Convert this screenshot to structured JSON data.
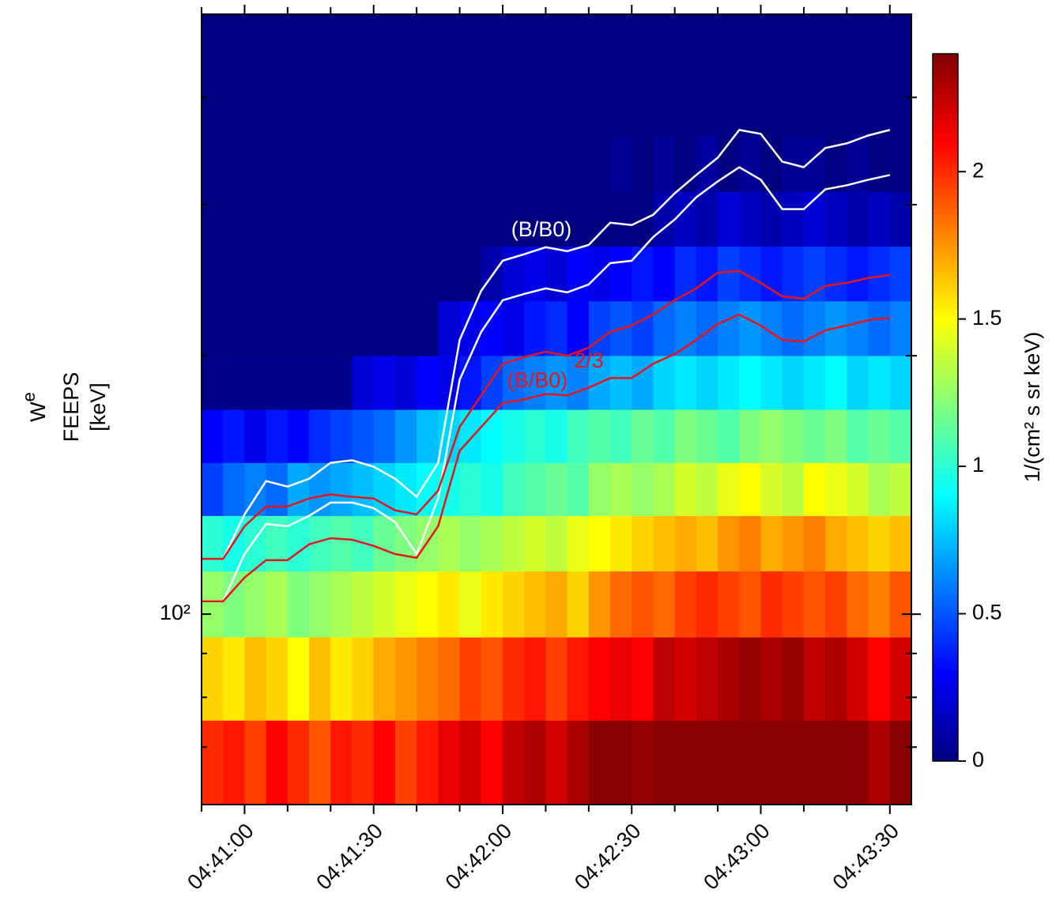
{
  "chart_data": {
    "type": "heatmap",
    "ylabel": {
      "main": "W",
      "sub": "e",
      "line2": "FEEPS",
      "line3": "[keV]"
    },
    "colorbar_label": "1/(cm² s sr keV)",
    "ylog": true,
    "ylim": [
      60,
      500
    ],
    "yticks": [
      {
        "value": 100,
        "label": "10²"
      }
    ],
    "yminorticks": [
      70,
      80,
      90,
      200,
      300,
      400
    ],
    "xlim": [
      "04:40:50",
      "04:43:35"
    ],
    "xticks": [
      "04:41:00",
      "04:41:30",
      "04:42:00",
      "04:42:30",
      "04:43:00",
      "04:43:30"
    ],
    "xminorticks": [
      "04:40:50",
      "04:41:10",
      "04:41:20",
      "04:41:40",
      "04:41:50",
      "04:42:10",
      "04:42:20",
      "04:42:40",
      "04:42:50",
      "04:43:10",
      "04:43:20"
    ],
    "clim": [
      0,
      2.4
    ],
    "cticks": [
      0,
      0.5,
      1,
      1.5,
      2
    ],
    "colormap": "jet",
    "time_bins": [
      "04:40:50",
      "04:40:55",
      "04:41:00",
      "04:41:05",
      "04:41:10",
      "04:41:15",
      "04:41:20",
      "04:41:25",
      "04:41:30",
      "04:41:35",
      "04:41:40",
      "04:41:45",
      "04:41:50",
      "04:41:55",
      "04:42:00",
      "04:42:05",
      "04:42:10",
      "04:42:15",
      "04:42:20",
      "04:42:25",
      "04:42:30",
      "04:42:35",
      "04:42:40",
      "04:42:45",
      "04:42:50",
      "04:42:55",
      "04:43:00",
      "04:43:05",
      "04:43:10",
      "04:43:15",
      "04:43:20",
      "04:43:25",
      "04:43:30",
      "04:43:35"
    ],
    "ybins": [
      60,
      75.2,
      94,
      112.2,
      130.2,
      150.1,
      173.1,
      200,
      231.6,
      268.2,
      310.5,
      361.3,
      500
    ],
    "z": [
      [
        2.0,
        2.05,
        1.95,
        2.1,
        2.0,
        1.9,
        2.05,
        2.0,
        2.1,
        1.95,
        2.05,
        2.15,
        2.2,
        2.1,
        2.25,
        2.3,
        2.2,
        2.3,
        2.38,
        2.38,
        2.35,
        2.38,
        2.38,
        2.38,
        2.38,
        2.38,
        2.38,
        2.38,
        2.38,
        2.38,
        2.38,
        2.3,
        2.38
      ],
      [
        1.6,
        1.55,
        1.65,
        1.6,
        1.5,
        1.65,
        1.55,
        1.6,
        1.7,
        1.75,
        1.8,
        1.85,
        1.95,
        1.9,
        2.0,
        2.05,
        1.95,
        2.05,
        2.1,
        2.15,
        2.1,
        2.25,
        2.2,
        2.25,
        2.3,
        2.35,
        2.3,
        2.35,
        2.25,
        2.3,
        2.2,
        2.1,
        2.2
      ],
      [
        1.25,
        1.2,
        1.25,
        1.3,
        1.2,
        1.25,
        1.3,
        1.35,
        1.4,
        1.45,
        1.5,
        1.55,
        1.45,
        1.55,
        1.6,
        1.65,
        1.7,
        1.6,
        1.75,
        1.85,
        1.9,
        1.85,
        1.95,
        2.0,
        1.95,
        1.9,
        2.0,
        1.95,
        1.9,
        1.95,
        1.85,
        1.8,
        1.9
      ],
      [
        1.0,
        0.95,
        1.0,
        1.05,
        1.0,
        1.05,
        1.1,
        1.05,
        1.15,
        1.2,
        1.25,
        1.3,
        1.25,
        1.3,
        1.35,
        1.4,
        1.35,
        1.45,
        1.5,
        1.55,
        1.6,
        1.65,
        1.7,
        1.65,
        1.75,
        1.8,
        1.7,
        1.75,
        1.8,
        1.7,
        1.65,
        1.6,
        1.65
      ],
      [
        0.45,
        0.55,
        0.6,
        0.55,
        0.7,
        0.65,
        0.7,
        0.75,
        0.8,
        0.85,
        0.9,
        0.95,
        1.0,
        0.95,
        1.05,
        1.1,
        1.15,
        1.1,
        1.25,
        1.3,
        1.25,
        1.3,
        1.4,
        1.35,
        1.45,
        1.5,
        1.4,
        1.35,
        1.5,
        1.45,
        1.4,
        1.3,
        1.35
      ],
      [
        0.3,
        0.35,
        0.25,
        0.35,
        0.3,
        0.4,
        0.45,
        0.5,
        0.55,
        0.65,
        0.75,
        0.8,
        0.85,
        0.9,
        0.95,
        1.0,
        0.95,
        1.05,
        1.1,
        1.05,
        1.15,
        1.1,
        1.2,
        1.15,
        1.1,
        1.2,
        1.25,
        1.2,
        1.15,
        1.2,
        1.1,
        1.15,
        1.1
      ],
      [
        0.02,
        0.02,
        0.02,
        0.02,
        0.02,
        0.02,
        0.02,
        0.2,
        0.25,
        0.2,
        0.3,
        0.25,
        0.35,
        0.45,
        0.55,
        0.6,
        0.65,
        0.6,
        0.7,
        0.75,
        0.7,
        0.8,
        0.85,
        0.8,
        0.85,
        0.9,
        0.85,
        0.8,
        0.85,
        0.9,
        0.8,
        0.85,
        0.8
      ],
      [
        0,
        0,
        0,
        0,
        0,
        0,
        0,
        0,
        0,
        0,
        0,
        0.2,
        0.25,
        0.3,
        0.25,
        0.35,
        0.4,
        0.3,
        0.45,
        0.5,
        0.45,
        0.55,
        0.6,
        0.55,
        0.6,
        0.65,
        0.6,
        0.55,
        0.6,
        0.65,
        0.6,
        0.55,
        0.6
      ],
      [
        0,
        0,
        0,
        0,
        0,
        0,
        0,
        0,
        0,
        0,
        0,
        0,
        0,
        0.1,
        0.2,
        0.25,
        0.2,
        0.3,
        0.25,
        0.3,
        0.35,
        0.3,
        0.4,
        0.35,
        0.45,
        0.4,
        0.35,
        0.4,
        0.45,
        0.4,
        0.35,
        0.4,
        0.45
      ],
      [
        0,
        0,
        0,
        0,
        0,
        0,
        0,
        0,
        0,
        0,
        0,
        0,
        0,
        0,
        0,
        0,
        0,
        0,
        0,
        0,
        0,
        0.1,
        0.15,
        0.1,
        0.2,
        0.15,
        0.1,
        0.15,
        0.2,
        0.15,
        0.1,
        0.15,
        0.1
      ],
      [
        0,
        0,
        0,
        0,
        0,
        0,
        0,
        0,
        0,
        0,
        0,
        0,
        0,
        0,
        0,
        0,
        0,
        0,
        0,
        0.05,
        0,
        0.05,
        0,
        0.08,
        0,
        0.05,
        0,
        0.05,
        0.05,
        0,
        0.05,
        0,
        0
      ],
      [
        0,
        0,
        0,
        0,
        0,
        0,
        0,
        0,
        0,
        0,
        0,
        0,
        0,
        0,
        0,
        0,
        0,
        0,
        0,
        0,
        0,
        0,
        0,
        0,
        0,
        0,
        0,
        0,
        0,
        0,
        0,
        0,
        0
      ]
    ],
    "line_x": [
      "04:40:50",
      "04:40:55",
      "04:41:00",
      "04:41:05",
      "04:41:10",
      "04:41:15",
      "04:41:20",
      "04:41:25",
      "04:41:30",
      "04:41:35",
      "04:41:40",
      "04:41:45",
      "04:41:50",
      "04:41:55",
      "04:42:00",
      "04:42:05",
      "04:42:10",
      "04:42:15",
      "04:42:20",
      "04:42:25",
      "04:42:30",
      "04:42:35",
      "04:42:40",
      "04:42:45",
      "04:42:50",
      "04:42:55",
      "04:43:00",
      "04:43:05",
      "04:43:10",
      "04:43:15",
      "04:43:20",
      "04:43:25",
      "04:43:30"
    ],
    "series": [
      {
        "color": "#ffffff",
        "values": [
          116.0,
          116.0,
          130.7,
          142.9,
          140.8,
          143.8,
          150.1,
          151.1,
          148.5,
          143.8,
          137.0,
          150.1,
          208.7,
          238.1,
          258.1,
          262.6,
          267.6,
          264.8,
          269.3,
          285.8,
          284.0,
          292.0,
          309.3,
          324.8,
          340.3,
          366.6,
          362.7,
          336.7,
          331.7,
          349.2,
          353.6,
          361.2,
          366.6
        ]
      },
      {
        "color": "#ffffff",
        "values": [
          103.5,
          103.5,
          117.5,
          127.4,
          126.6,
          130.2,
          134.9,
          134.9,
          132.9,
          128.0,
          117.5,
          136.4,
          187.6,
          213.2,
          232.1,
          236.1,
          239.6,
          237.1,
          242.2,
          256.4,
          258.1,
          275.1,
          288.3,
          306.0,
          319.3,
          331.7,
          320.7,
          296.4,
          296.4,
          312.6,
          316.0,
          320.7,
          324.8
        ]
      },
      {
        "color": "#e8141c",
        "values": [
          116.0,
          116.0,
          126.6,
          133.5,
          133.5,
          136.4,
          137.9,
          137.0,
          136.4,
          132.1,
          130.7,
          139.3,
          165.2,
          179.8,
          195.8,
          199.3,
          202.2,
          200.0,
          204.4,
          213.2,
          216.9,
          223.4,
          232.1,
          239.6,
          250.0,
          251.1,
          243.2,
          234.6,
          233.1,
          241.2,
          243.2,
          246.4,
          248.4
        ]
      },
      {
        "color": "#e8141c",
        "values": [
          103.5,
          103.5,
          110.3,
          115.6,
          115.6,
          120.6,
          122.6,
          122.1,
          120.1,
          117.5,
          116.3,
          126.6,
          155.0,
          165.2,
          176.1,
          177.9,
          180.5,
          179.8,
          183.6,
          188.4,
          188.4,
          195.8,
          200.9,
          208.7,
          217.8,
          223.4,
          216.9,
          208.7,
          207.8,
          214.1,
          216.9,
          220.1,
          221.5
        ]
      }
    ],
    "annotations": [
      {
        "text": "(B/B0)",
        "color": "#ffffff"
      },
      {
        "text": "(B/B0)",
        "superscript": "2/3",
        "color": "#e8141c"
      }
    ]
  }
}
